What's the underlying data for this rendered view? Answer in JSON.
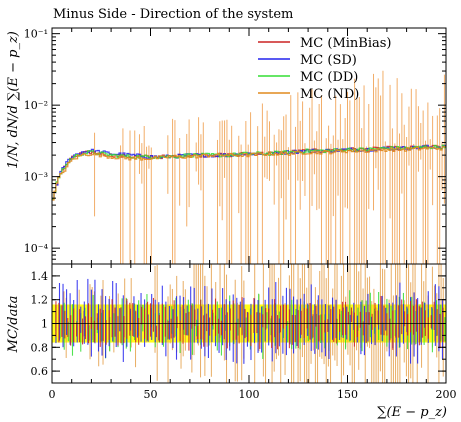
{
  "chart_data": [
    {
      "type": "line",
      "panel": "main",
      "title": "Minus Side - Direction of the system",
      "xlabel": "",
      "ylabel": "1/N, dN/d ∑(E − p_z)",
      "xlim": [
        0,
        200
      ],
      "ylim": [
        6e-05,
        0.12
      ],
      "yscale": "log",
      "y_ticks": [
        {
          "v": 0.1,
          "label": "10⁻¹"
        },
        {
          "v": 0.01,
          "label": "10⁻²"
        },
        {
          "v": 0.001,
          "label": "10⁻³"
        },
        {
          "v": 0.0001,
          "label": "10⁻⁴"
        }
      ],
      "legend_position": "top-right",
      "series": [
        {
          "name": "MC (MinBias)",
          "color": "#cc2222",
          "x": [
            1,
            3,
            5,
            7,
            10,
            15,
            20,
            25,
            30,
            40,
            50,
            60,
            70,
            80,
            90,
            100,
            110,
            120,
            130,
            140,
            150,
            160,
            170,
            180,
            190,
            200
          ],
          "values": [
            0.0005,
            0.0009,
            0.0012,
            0.0014,
            0.0018,
            0.0021,
            0.0022,
            0.0021,
            0.002,
            0.0019,
            0.0019,
            0.0019,
            0.002,
            0.002,
            0.002,
            0.0021,
            0.0021,
            0.0022,
            0.0023,
            0.0023,
            0.0024,
            0.0024,
            0.0025,
            0.0025,
            0.0026,
            0.0026
          ]
        },
        {
          "name": "MC (SD)",
          "color": "#2222ee",
          "x": [
            1,
            3,
            5,
            7,
            10,
            15,
            20,
            25,
            30,
            40,
            50,
            60,
            70,
            80,
            90,
            100,
            110,
            120,
            130,
            140,
            150,
            160,
            170,
            180,
            190,
            200
          ],
          "values": [
            0.0005,
            0.0009,
            0.0012,
            0.0015,
            0.0019,
            0.0022,
            0.0023,
            0.0022,
            0.0021,
            0.002,
            0.0019,
            0.0019,
            0.002,
            0.002,
            0.002,
            0.0021,
            0.0021,
            0.0022,
            0.0023,
            0.0023,
            0.0024,
            0.0024,
            0.0025,
            0.0025,
            0.0026,
            0.0026
          ]
        },
        {
          "name": "MC (DD)",
          "color": "#33dd33",
          "x": [
            1,
            3,
            5,
            7,
            10,
            15,
            20,
            25,
            30,
            40,
            50,
            60,
            70,
            80,
            90,
            100,
            110,
            120,
            130,
            140,
            150,
            160,
            170,
            180,
            190,
            200
          ],
          "values": [
            0.0005,
            0.0009,
            0.0012,
            0.0014,
            0.0018,
            0.0021,
            0.0022,
            0.0021,
            0.002,
            0.0019,
            0.0019,
            0.0019,
            0.002,
            0.002,
            0.002,
            0.0021,
            0.0021,
            0.0022,
            0.0023,
            0.0023,
            0.0024,
            0.0024,
            0.0025,
            0.0025,
            0.0026,
            0.0026
          ]
        },
        {
          "name": "MC (ND)",
          "color": "#e08a1e",
          "x": [
            1,
            3,
            5,
            7,
            10,
            15,
            20,
            25,
            30,
            40,
            50,
            60,
            70,
            80,
            90,
            100,
            110,
            120,
            130,
            140,
            150,
            160,
            170,
            180,
            190,
            200
          ],
          "values": [
            0.0005,
            0.0009,
            0.0011,
            0.0013,
            0.0017,
            0.002,
            0.0021,
            0.002,
            0.0019,
            0.0018,
            0.0018,
            0.0019,
            0.0019,
            0.002,
            0.002,
            0.002,
            0.0021,
            0.0021,
            0.0022,
            0.0022,
            0.0023,
            0.0023,
            0.0024,
            0.0024,
            0.0025,
            0.0025
          ]
        }
      ]
    },
    {
      "type": "line",
      "panel": "ratio",
      "xlabel": "∑(E − p_z)",
      "ylabel": "MC/data",
      "xlim": [
        0,
        200
      ],
      "ylim": [
        0.5,
        1.5
      ],
      "x_ticks": [
        0,
        50,
        100,
        150,
        200
      ],
      "y_ticks": [
        0.6,
        0.8,
        1,
        1.2,
        1.4
      ],
      "reference_line": 1,
      "band_color": "#ffff00",
      "band": {
        "x": [
          0,
          200
        ],
        "lower": 0.84,
        "upper": 1.16
      },
      "series": [
        {
          "name": "MC (MinBias)",
          "color": "#cc2222",
          "x": [
            0,
            50,
            100,
            150,
            200
          ],
          "values": [
            1.0,
            1.0,
            1.0,
            1.0,
            1.0
          ]
        },
        {
          "name": "MC (SD)",
          "color": "#2222ee",
          "x": [
            0,
            50,
            100,
            150,
            200
          ],
          "values": [
            1.05,
            1.02,
            1.0,
            1.0,
            1.0
          ]
        },
        {
          "name": "MC (DD)",
          "color": "#33dd33",
          "x": [
            0,
            50,
            100,
            150,
            200
          ],
          "values": [
            0.98,
            0.98,
            0.99,
            1.0,
            1.0
          ]
        },
        {
          "name": "MC (ND)",
          "color": "#e08a1e",
          "x": [
            0,
            50,
            100,
            150,
            200
          ],
          "values": [
            0.96,
            0.96,
            0.97,
            0.97,
            0.97
          ]
        }
      ]
    }
  ]
}
